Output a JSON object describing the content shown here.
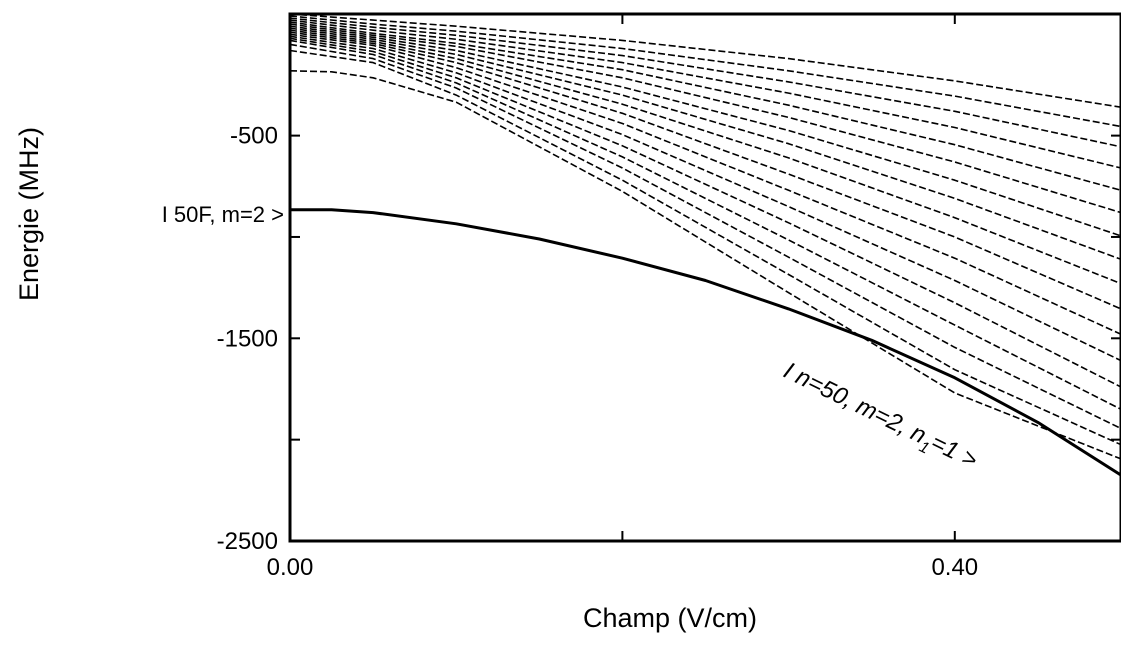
{
  "chart_data": {
    "type": "line",
    "title": "",
    "xlabel": "Champ (V/cm)",
    "ylabel": "Energie (MHz)",
    "xlim": [
      0.0,
      0.5
    ],
    "ylim": [
      -2500,
      100
    ],
    "x_ticks": [
      0.0,
      0.2,
      0.4
    ],
    "x_tick_labels": [
      "0.00",
      "",
      "0.40"
    ],
    "y_ticks": [
      -2500,
      -2000,
      -1500,
      -1000,
      -500
    ],
    "y_tick_labels": [
      "-2500",
      "",
      "-1500",
      "",
      "-500"
    ],
    "grid": false,
    "legend": "none",
    "annotations": {
      "left_state": "I 50F, m=2 >",
      "stark_state_prefix": "I n=50, m=2, n",
      "stark_state_sub": "1",
      "stark_state_suffix": "=1 >"
    },
    "series": [
      {
        "style": "solid",
        "x": [
          0.0,
          0.025,
          0.05,
          0.1,
          0.15,
          0.2,
          0.25,
          0.3,
          0.35,
          0.4,
          0.45,
          0.5
        ],
        "y": [
          -866,
          -866,
          -880,
          -935,
          -1010,
          -1105,
          -1215,
          -1355,
          -1510,
          -1695,
          -1915,
          -2175
        ]
      },
      {
        "style": "dashed",
        "x": [
          0.0,
          0.025,
          0.05,
          0.1,
          0.2,
          0.3,
          0.4,
          0.5
        ],
        "y": [
          -180,
          -185,
          -215,
          -335,
          -775,
          -1275,
          -1770,
          -2095
        ]
      },
      {
        "style": "dashed",
        "x": [
          0.0,
          0.05,
          0.1,
          0.2,
          0.3,
          0.4,
          0.5
        ],
        "y": [
          -80,
          -140,
          -300,
          -720,
          -1185,
          -1655,
          -2025
        ]
      },
      {
        "style": "dashed",
        "x": [
          0.0,
          0.05,
          0.1,
          0.2,
          0.3,
          0.4,
          0.5
        ],
        "y": [
          -50,
          -120,
          -265,
          -660,
          -1100,
          -1545,
          -1945
        ]
      },
      {
        "style": "dashed",
        "x": [
          0.0,
          0.05,
          0.1,
          0.2,
          0.3,
          0.4,
          0.5
        ],
        "y": [
          -30,
          -100,
          -240,
          -605,
          -1015,
          -1435,
          -1850
        ]
      },
      {
        "style": "dashed",
        "x": [
          0.0,
          0.05,
          0.1,
          0.2,
          0.3,
          0.4,
          0.5
        ],
        "y": [
          -20,
          -85,
          -215,
          -550,
          -930,
          -1325,
          -1740
        ]
      },
      {
        "style": "dashed",
        "x": [
          0.0,
          0.05,
          0.1,
          0.2,
          0.3,
          0.4,
          0.5
        ],
        "y": [
          -10,
          -70,
          -190,
          -495,
          -850,
          -1215,
          -1610
        ]
      },
      {
        "style": "dashed",
        "x": [
          0.0,
          0.05,
          0.1,
          0.2,
          0.3,
          0.4,
          0.5
        ],
        "y": [
          0,
          -55,
          -165,
          -440,
          -770,
          -1105,
          -1480
        ]
      },
      {
        "style": "dashed",
        "x": [
          0.0,
          0.05,
          0.1,
          0.2,
          0.3,
          0.4,
          0.5
        ],
        "y": [
          10,
          -45,
          -140,
          -390,
          -690,
          -1000,
          -1355
        ]
      },
      {
        "style": "dashed",
        "x": [
          0.0,
          0.05,
          0.1,
          0.2,
          0.3,
          0.4,
          0.5
        ],
        "y": [
          20,
          -35,
          -120,
          -345,
          -610,
          -905,
          -1230
        ]
      },
      {
        "style": "dashed",
        "x": [
          0.0,
          0.05,
          0.1,
          0.2,
          0.3,
          0.4,
          0.5
        ],
        "y": [
          30,
          -25,
          -100,
          -300,
          -540,
          -810,
          -1110
        ]
      },
      {
        "style": "dashed",
        "x": [
          0.0,
          0.05,
          0.1,
          0.2,
          0.3,
          0.4,
          0.5
        ],
        "y": [
          40,
          -15,
          -80,
          -260,
          -475,
          -720,
          -995
        ]
      },
      {
        "style": "dashed",
        "x": [
          0.0,
          0.05,
          0.1,
          0.2,
          0.3,
          0.4,
          0.5
        ],
        "y": [
          50,
          -5,
          -60,
          -215,
          -410,
          -630,
          -880
        ]
      },
      {
        "style": "dashed",
        "x": [
          0.0,
          0.05,
          0.1,
          0.2,
          0.3,
          0.4,
          0.5
        ],
        "y": [
          60,
          5,
          -45,
          -175,
          -350,
          -545,
          -770
        ]
      },
      {
        "style": "dashed",
        "x": [
          0.0,
          0.05,
          0.1,
          0.2,
          0.3,
          0.4,
          0.5
        ],
        "y": [
          70,
          20,
          -25,
          -140,
          -290,
          -460,
          -660
        ]
      },
      {
        "style": "dashed",
        "x": [
          0.0,
          0.05,
          0.1,
          0.2,
          0.3,
          0.4,
          0.5
        ],
        "y": [
          80,
          35,
          -5,
          -105,
          -235,
          -380,
          -555
        ]
      },
      {
        "style": "dashed",
        "x": [
          0.0,
          0.05,
          0.1,
          0.2,
          0.3,
          0.4,
          0.5
        ],
        "y": [
          90,
          50,
          15,
          -70,
          -180,
          -305,
          -455
        ]
      },
      {
        "style": "dashed",
        "x": [
          0.0,
          0.05,
          0.1,
          0.2,
          0.3,
          0.4,
          0.5
        ],
        "y": [
          100,
          70,
          40,
          -30,
          -120,
          -230,
          -360
        ]
      }
    ]
  }
}
